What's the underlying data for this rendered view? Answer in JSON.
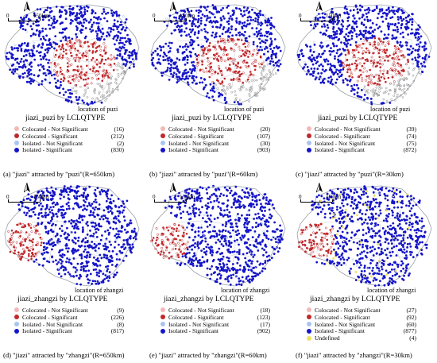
{
  "north_symbol": "north-arrow",
  "scale_zero": "0",
  "scale_label": "150km",
  "colors": {
    "colocated_not_significant": "#f2b8b8",
    "colocated_significant": "#c0282b",
    "isolated_not_significant": "#a8c4ef",
    "isolated_significant": "#1414c8",
    "undefined": "#f0e060",
    "unlabeled_gray": "#8a8a8a",
    "boundary": "#9aa0aa"
  },
  "panels": [
    {
      "location_label": "location of puzi",
      "legend_title": "jiazi_puzi by LCLQTYPE",
      "legend": [
        {
          "label": "Colocated - Not Significant",
          "count": "(16)",
          "color": "#f2b8b8"
        },
        {
          "label": "Colocated - Significant",
          "count": "(212)",
          "color": "#c0282b"
        },
        {
          "label": "Isolated - Not Significant",
          "count": "(2)",
          "color": "#a8c4ef"
        },
        {
          "label": "Isolated - Significant",
          "count": "(830)",
          "color": "#1414c8"
        }
      ],
      "caption": "(a) \"jiazi\" attracted by \"puzi\"(R=650km)"
    },
    {
      "location_label": "location of puzi",
      "legend_title": "jiazi_puzi by LCLQTYPE",
      "legend": [
        {
          "label": "Colocated - Not Significant",
          "count": "(20)",
          "color": "#f2b8b8"
        },
        {
          "label": "Colocated - Significant",
          "count": "(107)",
          "color": "#c0282b"
        },
        {
          "label": "Isolated - Not Significant",
          "count": "(30)",
          "color": "#a8c4ef"
        },
        {
          "label": "Isolated - Significant",
          "count": "(903)",
          "color": "#1414c8"
        }
      ],
      "caption": "(b) \"jiazi\" attracted by \"puzi\"(R=60km)"
    },
    {
      "location_label": "location of puzi",
      "legend_title": "jiazi_puzi by LCLQTYPE",
      "legend": [
        {
          "label": "Colocated - Not Significant",
          "count": "(39)",
          "color": "#f2b8b8"
        },
        {
          "label": "Colocated - Significant",
          "count": "(74)",
          "color": "#c0282b"
        },
        {
          "label": "Isolated - Not Significant",
          "count": "(75)",
          "color": "#a8c4ef"
        },
        {
          "label": "Isolated - Significant",
          "count": "(872)",
          "color": "#1414c8"
        }
      ],
      "caption": "(c) \"jiazi\" attracted by \"puzi\"(R=30km)"
    },
    {
      "location_label": "location of zhangzi",
      "legend_title": "jiazi_zhangzi by LCLQTYPE",
      "legend": [
        {
          "label": "Colocated - Not Significant",
          "count": "(9)",
          "color": "#f2b8b8"
        },
        {
          "label": "Colocated - Significant",
          "count": "(226)",
          "color": "#c0282b"
        },
        {
          "label": "Isolated - Not Significant",
          "count": "(8)",
          "color": "#a8c4ef"
        },
        {
          "label": "Isolated - Significant",
          "count": "(817)",
          "color": "#1414c8"
        }
      ],
      "caption": "(d) \"jiazi\" attracted by \"zhangzi\"(R=650km)"
    },
    {
      "location_label": "location of zhangzi",
      "legend_title": "jiazi_zhangzi by LCLQTYPE",
      "legend": [
        {
          "label": "Colocated - Not Significant",
          "count": "(18)",
          "color": "#f2b8b8"
        },
        {
          "label": "Colocated - Significant",
          "count": "(123)",
          "color": "#c0282b"
        },
        {
          "label": "Isolated - Not Significant",
          "count": "(17)",
          "color": "#a8c4ef"
        },
        {
          "label": "Isolated - Significant",
          "count": "(902)",
          "color": "#1414c8"
        }
      ],
      "caption": "(e) \"jiazi\" attracted by \"zhangzi\"(R=60km)"
    },
    {
      "location_label": "location of zhangzi",
      "legend_title": "jiazi_zhangzi by LCLQTYPE",
      "legend": [
        {
          "label": "Colocated - Not Significant",
          "count": "(27)",
          "color": "#f2b8b8"
        },
        {
          "label": "Colocated - Significant",
          "count": "(92)",
          "color": "#c0282b"
        },
        {
          "label": "Isolated - Not Significant",
          "count": "(60)",
          "color": "#a8c4ef"
        },
        {
          "label": "Isolated - Significant",
          "count": "(877)",
          "color": "#1414c8"
        },
        {
          "label": "Undefined",
          "count": "(4)",
          "color": "#f0e060"
        }
      ],
      "caption": "(f) \"jiazi\" attracted by \"zhangzi\"(R=30km)"
    }
  ]
}
